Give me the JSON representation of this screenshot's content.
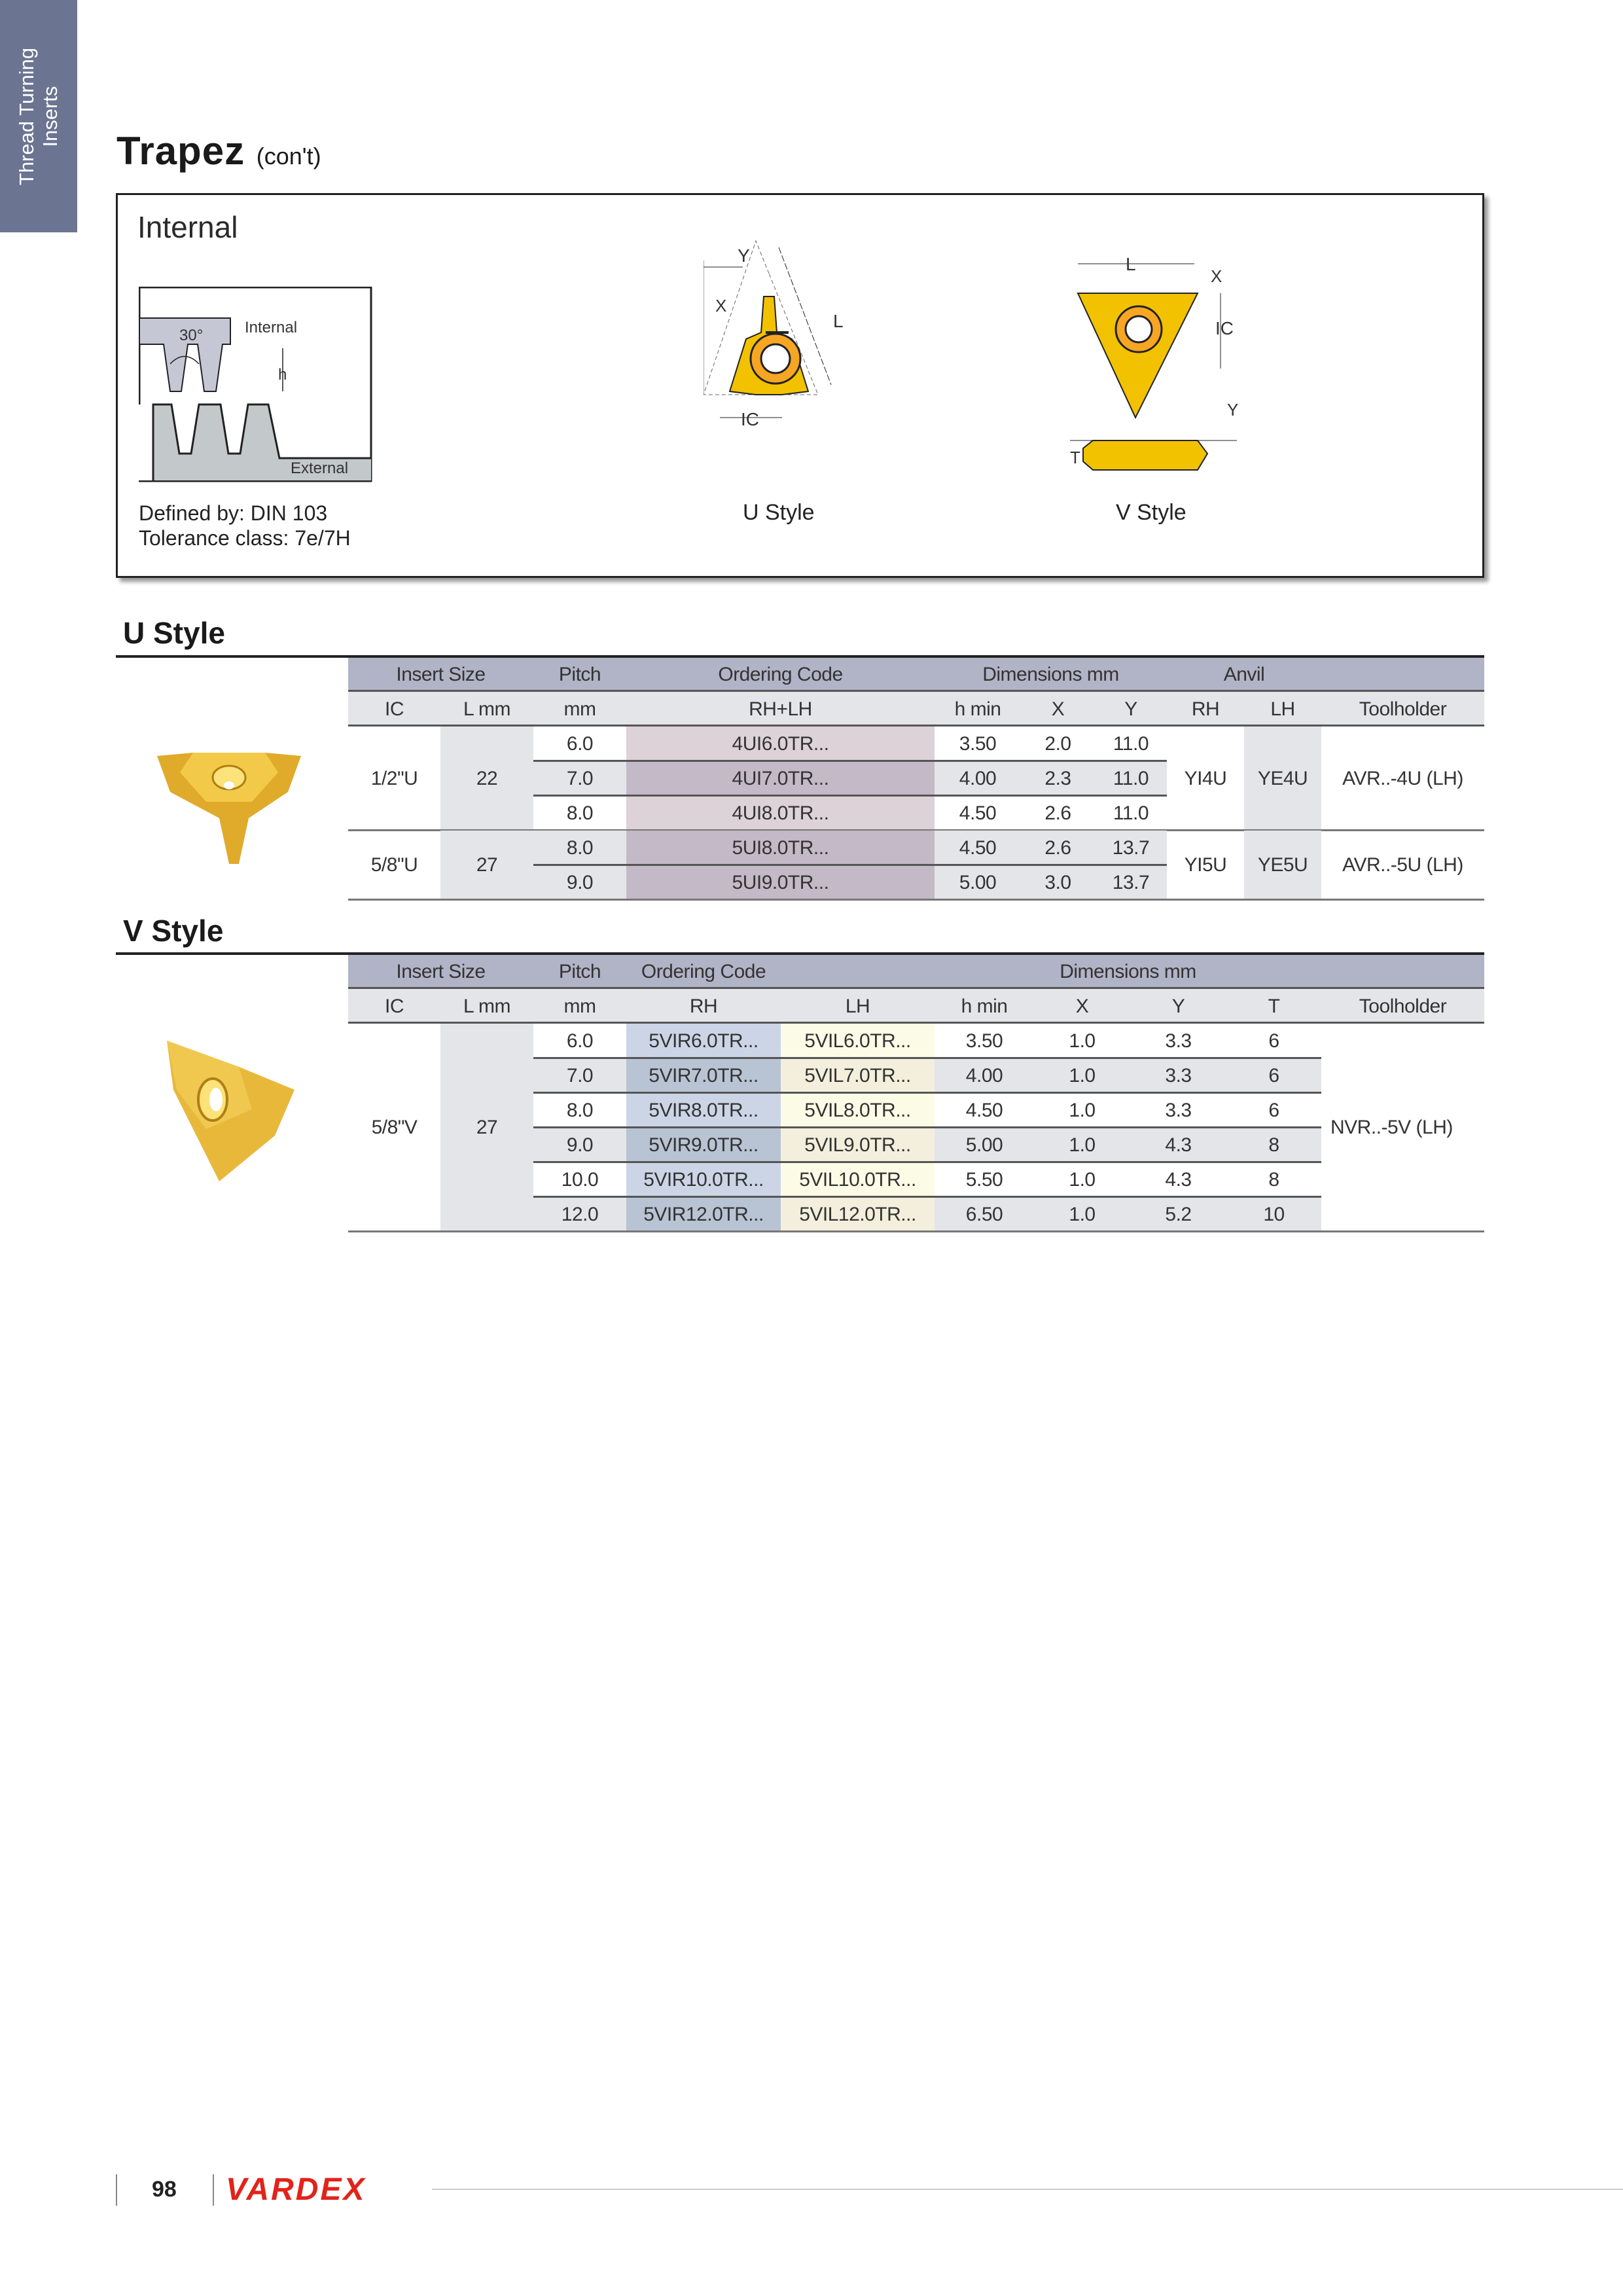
{
  "side_tab": {
    "line1": "Thread Turning",
    "line2": "Inserts"
  },
  "title": {
    "main": "Trapez",
    "sub": "(con't)"
  },
  "box": {
    "heading": "Internal",
    "thread_diagram": {
      "internal": "Internal",
      "external": "External",
      "angle": "30°",
      "h": "h"
    },
    "defined_by": "Defined by: DIN 103",
    "tolerance": "Tolerance class: 7e/7H",
    "u_style_label": "U Style",
    "v_style_label": "V Style",
    "u_dims": {
      "y": "Y",
      "x": "X",
      "l": "L",
      "ic": "IC"
    },
    "v_dims": {
      "l": "L",
      "x": "X",
      "ic": "IC",
      "y": "Y",
      "t": "T"
    }
  },
  "u_section": {
    "heading": "U Style",
    "header1": [
      "Insert Size",
      "Pitch",
      "Ordering Code",
      "Dimensions mm",
      "Anvil",
      ""
    ],
    "header2": [
      "IC",
      "L mm",
      "mm",
      "RH+LH",
      "h min",
      "X",
      "Y",
      "RH",
      "LH",
      "Toolholder"
    ],
    "groups": [
      {
        "ic": "1/2\"U",
        "l": "22",
        "anvil_rh": "YI4U",
        "anvil_lh": "YE4U",
        "toolholder": "AVR..-4U (LH)",
        "rows": [
          [
            "6.0",
            "4UI6.0TR...",
            "3.50",
            "2.0",
            "11.0"
          ],
          [
            "7.0",
            "4UI7.0TR...",
            "4.00",
            "2.3",
            "11.0"
          ],
          [
            "8.0",
            "4UI8.0TR...",
            "4.50",
            "2.6",
            "11.0"
          ]
        ]
      },
      {
        "ic": "5/8\"U",
        "l": "27",
        "anvil_rh": "YI5U",
        "anvil_lh": "YE5U",
        "toolholder": "AVR..-5U (LH)",
        "rows": [
          [
            "8.0",
            "5UI8.0TR...",
            "4.50",
            "2.6",
            "13.7"
          ],
          [
            "9.0",
            "5UI9.0TR...",
            "5.00",
            "3.0",
            "13.7"
          ]
        ]
      }
    ]
  },
  "v_section": {
    "heading": "V Style",
    "header1": [
      "Insert Size",
      "Pitch",
      "Ordering Code",
      "Dimensions mm",
      ""
    ],
    "header2": [
      "IC",
      "L mm",
      "mm",
      "RH",
      "LH",
      "h min",
      "X",
      "Y",
      "T",
      "Toolholder"
    ],
    "group": {
      "ic": "5/8\"V",
      "l": "27",
      "toolholder": "NVR..-5V (LH)",
      "rows": [
        [
          "6.0",
          "5VIR6.0TR...",
          "5VIL6.0TR...",
          "3.50",
          "1.0",
          "3.3",
          "6"
        ],
        [
          "7.0",
          "5VIR7.0TR...",
          "5VIL7.0TR...",
          "4.00",
          "1.0",
          "3.3",
          "6"
        ],
        [
          "8.0",
          "5VIR8.0TR...",
          "5VIL8.0TR...",
          "4.50",
          "1.0",
          "3.3",
          "6"
        ],
        [
          "9.0",
          "5VIR9.0TR...",
          "5VIL9.0TR...",
          "5.00",
          "1.0",
          "4.3",
          "8"
        ],
        [
          "10.0",
          "5VIR10.0TR...",
          "5VIL10.0TR...",
          "5.50",
          "1.0",
          "4.3",
          "8"
        ],
        [
          "12.0",
          "5VIR12.0TR...",
          "5VIL12.0TR...",
          "6.50",
          "1.0",
          "5.2",
          "10"
        ]
      ]
    }
  },
  "footer": {
    "page": "98",
    "brand": "VARDEX",
    "brand_color": "#e2231a"
  },
  "colors": {
    "side_tab": "#6b7592",
    "header1": "#b1b3c6",
    "header2": "#e4e5e8",
    "insert_gold": "#f2c200"
  }
}
